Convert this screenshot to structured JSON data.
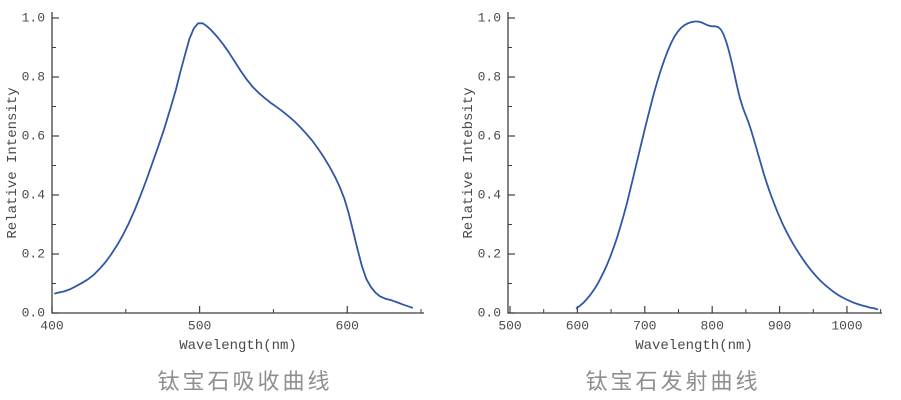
{
  "figure": {
    "background": "#ffffff",
    "line_color": "#3057a7",
    "axis_color": "#3f3f3f",
    "tick_text_color": "#4a4a4a",
    "caption_color": "#8f8f8f"
  },
  "chart_data": [
    {
      "type": "line",
      "title": "钛宝石吸收曲线",
      "xlabel": "Wavelength(nm)",
      "ylabel": "Relative Intensity",
      "xlim": [
        400,
        652
      ],
      "ylim": [
        0,
        1.0
      ],
      "x_major_ticks": [
        400,
        500,
        600
      ],
      "x_tick_labels": [
        "400",
        "500",
        "600"
      ],
      "x_minor_ticks": [
        450,
        550,
        650
      ],
      "y_major_ticks": [
        0,
        0.2,
        0.4,
        0.6,
        0.8,
        1.0
      ],
      "y_tick_labels": [
        "0.0",
        "0.2",
        "0.4",
        "0.6",
        "0.8",
        "1.0"
      ],
      "y_minor_ticks": [
        0.1,
        0.3,
        0.5,
        0.7,
        0.9
      ],
      "grid": false,
      "legend": false,
      "series": [
        {
          "name": "absorption",
          "points": [
            [
              402,
              0.066
            ],
            [
              405,
              0.07
            ],
            [
              408,
              0.073
            ],
            [
              412,
              0.08
            ],
            [
              416,
              0.09
            ],
            [
              420,
              0.101
            ],
            [
              424,
              0.113
            ],
            [
              428,
              0.128
            ],
            [
              432,
              0.148
            ],
            [
              436,
              0.171
            ],
            [
              440,
              0.198
            ],
            [
              444,
              0.229
            ],
            [
              448,
              0.264
            ],
            [
              452,
              0.304
            ],
            [
              456,
              0.349
            ],
            [
              460,
              0.399
            ],
            [
              464,
              0.452
            ],
            [
              468,
              0.508
            ],
            [
              472,
              0.565
            ],
            [
              476,
              0.624
            ],
            [
              480,
              0.69
            ],
            [
              484,
              0.758
            ],
            [
              487,
              0.818
            ],
            [
              490,
              0.874
            ],
            [
              493,
              0.928
            ],
            [
              496,
              0.964
            ],
            [
              499,
              0.982
            ],
            [
              502,
              0.982
            ],
            [
              505,
              0.972
            ],
            [
              508,
              0.958
            ],
            [
              512,
              0.936
            ],
            [
              516,
              0.911
            ],
            [
              520,
              0.882
            ],
            [
              524,
              0.851
            ],
            [
              528,
              0.819
            ],
            [
              532,
              0.791
            ],
            [
              536,
              0.766
            ],
            [
              540,
              0.746
            ],
            [
              544,
              0.729
            ],
            [
              548,
              0.713
            ],
            [
              552,
              0.699
            ],
            [
              556,
              0.684
            ],
            [
              560,
              0.668
            ],
            [
              564,
              0.651
            ],
            [
              568,
              0.631
            ],
            [
              572,
              0.609
            ],
            [
              576,
              0.586
            ],
            [
              580,
              0.559
            ],
            [
              584,
              0.529
            ],
            [
              588,
              0.496
            ],
            [
              592,
              0.459
            ],
            [
              595,
              0.426
            ],
            [
              598,
              0.388
            ],
            [
              601,
              0.338
            ],
            [
              604,
              0.278
            ],
            [
              607,
              0.215
            ],
            [
              610,
              0.158
            ],
            [
              613,
              0.115
            ],
            [
              616,
              0.088
            ],
            [
              619,
              0.07
            ],
            [
              622,
              0.057
            ],
            [
              626,
              0.048
            ],
            [
              630,
              0.043
            ],
            [
              634,
              0.036
            ],
            [
              638,
              0.028
            ],
            [
              641,
              0.023
            ],
            [
              644,
              0.018
            ]
          ]
        }
      ]
    },
    {
      "type": "line",
      "title": "钛宝石发射曲线",
      "xlabel": "Wavelength(nm)",
      "ylabel": "Relative Intebsity",
      "xlim": [
        497,
        1052
      ],
      "ylim": [
        0,
        1.0
      ],
      "x_major_ticks": [
        500,
        600,
        700,
        800,
        900,
        1000
      ],
      "x_tick_labels": [
        "500",
        "600",
        "700",
        "800",
        "900",
        "1000"
      ],
      "x_minor_ticks": [
        550,
        650,
        750,
        850,
        950,
        1050
      ],
      "y_major_ticks": [
        0,
        0.2,
        0.4,
        0.6,
        0.8,
        1.0
      ],
      "y_tick_labels": [
        "0.0",
        "0.2",
        "0.4",
        "0.6",
        "0.8",
        "1.0"
      ],
      "y_minor_ticks": [
        0.1,
        0.3,
        0.5,
        0.7,
        0.9
      ],
      "grid": false,
      "legend": false,
      "series": [
        {
          "name": "emission",
          "points": [
            [
              599,
              0.016
            ],
            [
              604,
              0.025
            ],
            [
              609,
              0.035
            ],
            [
              614,
              0.047
            ],
            [
              619,
              0.061
            ],
            [
              624,
              0.077
            ],
            [
              629,
              0.095
            ],
            [
              634,
              0.116
            ],
            [
              639,
              0.139
            ],
            [
              644,
              0.164
            ],
            [
              649,
              0.192
            ],
            [
              654,
              0.223
            ],
            [
              659,
              0.257
            ],
            [
              664,
              0.294
            ],
            [
              669,
              0.334
            ],
            [
              674,
              0.377
            ],
            [
              679,
              0.423
            ],
            [
              684,
              0.471
            ],
            [
              689,
              0.519
            ],
            [
              694,
              0.567
            ],
            [
              699,
              0.614
            ],
            [
              704,
              0.66
            ],
            [
              709,
              0.705
            ],
            [
              714,
              0.748
            ],
            [
              719,
              0.788
            ],
            [
              724,
              0.825
            ],
            [
              729,
              0.858
            ],
            [
              734,
              0.888
            ],
            [
              739,
              0.915
            ],
            [
              744,
              0.937
            ],
            [
              749,
              0.954
            ],
            [
              754,
              0.967
            ],
            [
              759,
              0.976
            ],
            [
              764,
              0.982
            ],
            [
              769,
              0.986
            ],
            [
              774,
              0.988
            ],
            [
              779,
              0.988
            ],
            [
              784,
              0.985
            ],
            [
              789,
              0.98
            ],
            [
              794,
              0.975
            ],
            [
              799,
              0.972
            ],
            [
              804,
              0.972
            ],
            [
              809,
              0.969
            ],
            [
              813,
              0.961
            ],
            [
              817,
              0.944
            ],
            [
              821,
              0.919
            ],
            [
              825,
              0.887
            ],
            [
              829,
              0.85
            ],
            [
              833,
              0.81
            ],
            [
              837,
              0.768
            ],
            [
              841,
              0.73
            ],
            [
              845,
              0.7
            ],
            [
              849,
              0.675
            ],
            [
              853,
              0.652
            ],
            [
              857,
              0.625
            ],
            [
              861,
              0.595
            ],
            [
              865,
              0.563
            ],
            [
              869,
              0.532
            ],
            [
              873,
              0.5
            ],
            [
              877,
              0.468
            ],
            [
              881,
              0.44
            ],
            [
              885,
              0.413
            ],
            [
              889,
              0.388
            ],
            [
              893,
              0.364
            ],
            [
              897,
              0.342
            ],
            [
              901,
              0.321
            ],
            [
              905,
              0.3
            ],
            [
              910,
              0.277
            ],
            [
              915,
              0.255
            ],
            [
              920,
              0.235
            ],
            [
              925,
              0.216
            ],
            [
              930,
              0.198
            ],
            [
              935,
              0.181
            ],
            [
              940,
              0.165
            ],
            [
              945,
              0.15
            ],
            [
              950,
              0.136
            ],
            [
              955,
              0.123
            ],
            [
              960,
              0.111
            ],
            [
              965,
              0.1
            ],
            [
              970,
              0.09
            ],
            [
              975,
              0.081
            ],
            [
              980,
              0.072
            ],
            [
              985,
              0.064
            ],
            [
              990,
              0.057
            ],
            [
              995,
              0.051
            ],
            [
              1000,
              0.045
            ],
            [
              1005,
              0.04
            ],
            [
              1010,
              0.035
            ],
            [
              1015,
              0.031
            ],
            [
              1020,
              0.027
            ],
            [
              1025,
              0.024
            ],
            [
              1030,
              0.021
            ],
            [
              1035,
              0.018
            ],
            [
              1040,
              0.016
            ],
            [
              1045,
              0.013
            ]
          ]
        }
      ]
    }
  ]
}
